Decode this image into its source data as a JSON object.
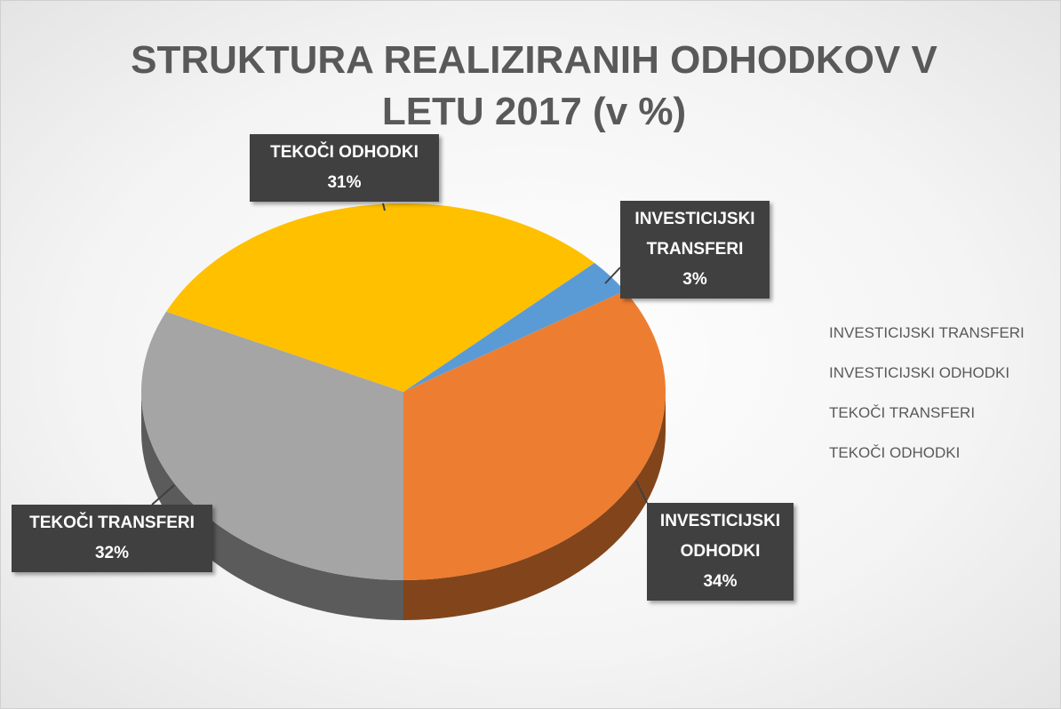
{
  "chart_data": {
    "type": "pie",
    "title": "STRUKTURA REALIZIRANIH ODHODKOV V LETU 2017 (v %)",
    "categories": [
      "INVESTICIJSKI TRANSFERI",
      "INVESTICIJSKI ODHODKI",
      "TEKOČI TRANSFERI",
      "TEKOČI ODHODKI"
    ],
    "values": [
      3,
      34,
      32,
      31
    ],
    "value_labels": [
      "3%",
      "34%",
      "32%",
      "31%"
    ],
    "colors": [
      "#5b9bd5",
      "#ed7d31",
      "#a5a5a5",
      "#ffc000"
    ],
    "legend": "right"
  }
}
